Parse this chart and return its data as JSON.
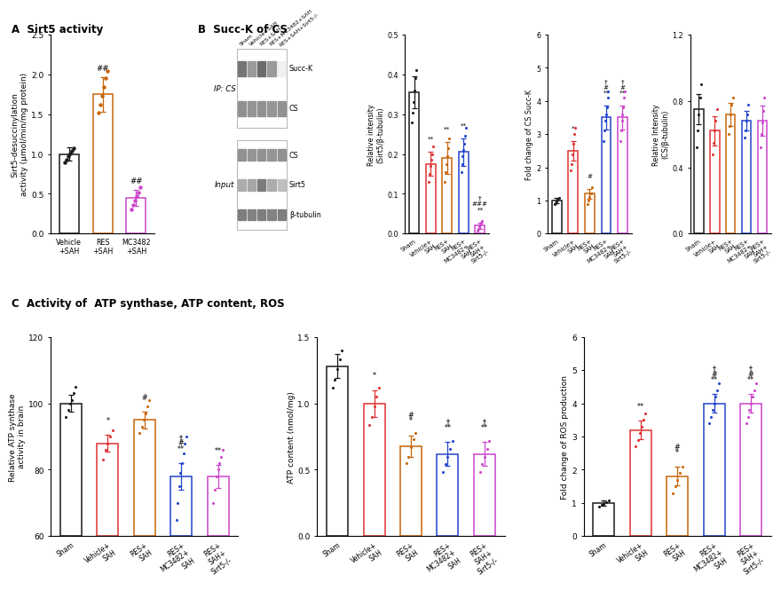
{
  "panel_A": {
    "ylabel": "Sirt5-desuccinylation\nactivity (μmol/min/mg protein)",
    "categories": [
      "Vehicle+SAH",
      "RES+SAH",
      "MC3482+SAH"
    ],
    "means": [
      1.0,
      1.75,
      0.45
    ],
    "errors": [
      0.08,
      0.22,
      0.1
    ],
    "colors": [
      "#1a1a1a",
      "#c8650a",
      "#cc44cc"
    ],
    "ylim": [
      0.0,
      2.5
    ],
    "yticks": [
      0.0,
      0.5,
      1.0,
      1.5,
      2.0,
      2.5
    ],
    "annotations": [
      "",
      "##",
      "##"
    ],
    "dot_y_sets": [
      [
        0.9,
        0.93,
        0.97,
        1.01,
        1.04,
        1.07
      ],
      [
        1.52,
        1.62,
        1.73,
        1.84,
        1.95,
        2.04
      ],
      [
        0.3,
        0.36,
        0.42,
        0.47,
        0.52,
        0.58
      ]
    ]
  },
  "panel_B_left": {
    "ylabel": "Relative intensity\n(Sirt5/β-tubulin)",
    "categories": [
      "Sham",
      "Vehicle+SAH",
      "RES+SAH",
      "RES+MC3482+SAH",
      "RES+SAH+Sirt5-/-"
    ],
    "means": [
      0.355,
      0.175,
      0.19,
      0.205,
      0.02
    ],
    "errors": [
      0.04,
      0.03,
      0.04,
      0.035,
      0.008
    ],
    "colors": [
      "#1a1a1a",
      "#e03030",
      "#c8650a",
      "#2244cc",
      "#cc44cc"
    ],
    "ylim": [
      0.0,
      0.5
    ],
    "yticks": [
      0.0,
      0.1,
      0.2,
      0.3,
      0.4,
      0.5
    ],
    "annotations": [
      "",
      "**",
      "**",
      "**",
      "†\n###\n**"
    ],
    "dot_y_sets": [
      [
        0.28,
        0.305,
        0.33,
        0.36,
        0.39,
        0.41
      ],
      [
        0.13,
        0.15,
        0.17,
        0.185,
        0.2,
        0.22
      ],
      [
        0.13,
        0.155,
        0.175,
        0.195,
        0.215,
        0.24
      ],
      [
        0.155,
        0.175,
        0.195,
        0.21,
        0.225,
        0.245,
        0.265
      ],
      [
        0.008,
        0.012,
        0.018,
        0.022,
        0.027,
        0.032
      ]
    ]
  },
  "panel_B_mid": {
    "ylabel": "Fold change of CS Succ-K",
    "categories": [
      "Sham",
      "Vehicle+SAH",
      "RES+SAH",
      "RES+MC3482+SAH",
      "RES+SAH+Sirt5-/-"
    ],
    "means": [
      1.0,
      2.5,
      1.2,
      3.5,
      3.5
    ],
    "errors": [
      0.08,
      0.3,
      0.15,
      0.35,
      0.35
    ],
    "colors": [
      "#1a1a1a",
      "#e03030",
      "#c8650a",
      "#2244cc",
      "#cc44cc"
    ],
    "ylim": [
      0,
      6
    ],
    "yticks": [
      0,
      1,
      2,
      3,
      4,
      5,
      6
    ],
    "annotations": [
      "",
      "*",
      "#",
      "†\n#\n**",
      "†\n#\n**"
    ],
    "dot_y_sets": [
      [
        0.88,
        0.93,
        0.98,
        1.02,
        1.07
      ],
      [
        1.9,
        2.1,
        2.4,
        2.7,
        3.0,
        3.2
      ],
      [
        0.9,
        1.0,
        1.1,
        1.2,
        1.4
      ],
      [
        2.8,
        3.1,
        3.4,
        3.6,
        3.8,
        4.1,
        4.3
      ],
      [
        2.8,
        3.1,
        3.4,
        3.6,
        3.8,
        4.1,
        4.3
      ]
    ]
  },
  "panel_B_right": {
    "ylabel": "Relative Intensity\n(CS/β-tubulin)",
    "categories": [
      "Sham",
      "Vehicle+SAH",
      "RES+SAH",
      "RES+MC3482+SAH",
      "RES+SAH+Sirt5-/-"
    ],
    "means": [
      0.75,
      0.62,
      0.72,
      0.68,
      0.68
    ],
    "errors": [
      0.09,
      0.09,
      0.07,
      0.06,
      0.09
    ],
    "colors": [
      "#1a1a1a",
      "#e03030",
      "#c8650a",
      "#2244cc",
      "#cc44cc"
    ],
    "ylim": [
      0.0,
      1.2
    ],
    "yticks": [
      0.0,
      0.4,
      0.8,
      1.2
    ],
    "annotations": [
      "",
      "",
      "",
      "",
      ""
    ],
    "dot_y_sets": [
      [
        0.52,
        0.62,
        0.72,
        0.82,
        0.9
      ],
      [
        0.48,
        0.55,
        0.62,
        0.68,
        0.75
      ],
      [
        0.6,
        0.65,
        0.72,
        0.78,
        0.82
      ],
      [
        0.58,
        0.62,
        0.68,
        0.72,
        0.78
      ],
      [
        0.52,
        0.6,
        0.67,
        0.74,
        0.82
      ]
    ]
  },
  "panel_C_left": {
    "ylabel": "Relative ATP synthase\nactivity in brain",
    "categories": [
      "Sham",
      "Vehicle+SAH",
      "RES+SAH",
      "RES+MC3482+SAH",
      "RES+SAH+Sirt5-/-"
    ],
    "means": [
      100,
      88,
      95,
      78,
      78
    ],
    "errors": [
      2.5,
      2.5,
      2.5,
      4,
      3.5
    ],
    "colors": [
      "#1a1a1a",
      "#e03030",
      "#c8650a",
      "#2244cc",
      "#cc44cc"
    ],
    "ylim": [
      60,
      120
    ],
    "yticks": [
      60,
      80,
      100,
      120
    ],
    "annotations": [
      "",
      "*",
      "#",
      "†\n#\n**",
      "**"
    ],
    "dot_y_sets": [
      [
        96,
        98,
        100,
        101,
        103,
        105
      ],
      [
        83,
        86,
        88,
        90,
        92
      ],
      [
        91,
        93,
        95,
        97,
        99,
        101
      ],
      [
        65,
        70,
        75,
        79,
        82,
        85,
        88,
        90
      ],
      [
        70,
        74,
        78,
        80,
        82,
        84,
        86
      ]
    ]
  },
  "panel_C_mid": {
    "ylabel": "ATP content (nmol/mg)",
    "categories": [
      "Sham",
      "Vehicle+SAH",
      "RES+SAH",
      "RES+MC3482+SAH",
      "RES+SAH+Sirt5-/-"
    ],
    "means": [
      1.28,
      1.0,
      0.68,
      0.62,
      0.62
    ],
    "errors": [
      0.09,
      0.1,
      0.08,
      0.09,
      0.09
    ],
    "colors": [
      "#1a1a1a",
      "#e03030",
      "#c8650a",
      "#2244cc",
      "#cc44cc"
    ],
    "ylim": [
      0.0,
      1.5
    ],
    "yticks": [
      0.0,
      0.5,
      1.0,
      1.5
    ],
    "annotations": [
      "",
      "*",
      "#\n*",
      "†\n**",
      "†\n**"
    ],
    "dot_y_sets": [
      [
        1.12,
        1.18,
        1.26,
        1.33,
        1.4
      ],
      [
        0.84,
        0.9,
        0.98,
        1.05,
        1.12
      ],
      [
        0.55,
        0.6,
        0.67,
        0.73,
        0.78
      ],
      [
        0.48,
        0.54,
        0.6,
        0.66,
        0.72
      ],
      [
        0.48,
        0.54,
        0.6,
        0.66,
        0.72
      ]
    ]
  },
  "panel_C_right": {
    "ylabel": "Fold change of ROS production",
    "categories": [
      "Sham",
      "Vehicle+SAH",
      "RES+SAH",
      "RES+MC3482+SAH",
      "RES+SAH+Sirt5-/-"
    ],
    "means": [
      1.0,
      3.2,
      1.8,
      4.0,
      4.0
    ],
    "errors": [
      0.08,
      0.28,
      0.28,
      0.28,
      0.28
    ],
    "colors": [
      "#1a1a1a",
      "#e03030",
      "#c8650a",
      "#2244cc",
      "#cc44cc"
    ],
    "ylim": [
      0,
      6
    ],
    "yticks": [
      0,
      1,
      2,
      3,
      4,
      5,
      6
    ],
    "annotations": [
      "",
      "**",
      "#\n*",
      "†\n#\n**",
      "†\n#\n**"
    ],
    "dot_y_sets": [
      [
        0.88,
        0.93,
        0.98,
        1.02,
        1.07
      ],
      [
        2.7,
        2.9,
        3.1,
        3.3,
        3.5,
        3.7
      ],
      [
        1.3,
        1.5,
        1.7,
        1.9,
        2.1
      ],
      [
        3.4,
        3.6,
        3.8,
        4.0,
        4.2,
        4.4,
        4.6
      ],
      [
        3.4,
        3.6,
        3.8,
        4.0,
        4.2,
        4.4,
        4.6
      ]
    ]
  },
  "blot": {
    "col_labels": [
      "Sham",
      "Vehicle+SAH",
      "RES+SAH",
      "RES+MC3482+SAH",
      "RES+SAH+Sirt5-/-"
    ],
    "row_labels": [
      "Succ-K",
      "CS",
      "CS",
      "Sirt5",
      "β-tubulin"
    ],
    "ip_label": "IP: CS",
    "input_label": "Input",
    "ip_rows": [
      0,
      1
    ],
    "input_rows": [
      2,
      3,
      4
    ],
    "band_intensities": [
      [
        0.75,
        0.55,
        0.8,
        0.55,
        0.08
      ],
      [
        0.6,
        0.58,
        0.6,
        0.58,
        0.6
      ],
      [
        0.6,
        0.58,
        0.6,
        0.58,
        0.6
      ],
      [
        0.45,
        0.48,
        0.72,
        0.45,
        0.35
      ],
      [
        0.7,
        0.68,
        0.7,
        0.68,
        0.7
      ]
    ]
  },
  "bg_color": "#ffffff"
}
